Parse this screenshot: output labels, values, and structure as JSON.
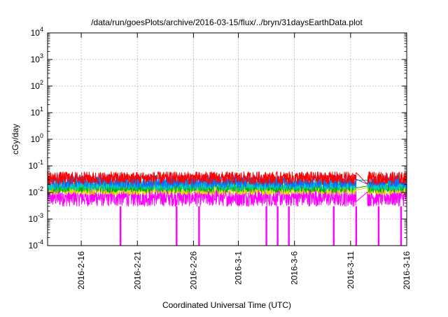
{
  "chart_data": {
    "type": "line",
    "title": "/data/run/goesPlots/archive/2016-03-15/flux/../bryn/31daysEarthData.plot",
    "xlabel": "Coordinated Universal Time (UTC)",
    "ylabel": "cGy/day",
    "yscale": "log",
    "ylim": [
      0.0001,
      10000
    ],
    "xlim": [
      "2016-02-13",
      "2016-03-16"
    ],
    "grid": true,
    "legend": "none",
    "x_ticks": [
      "2016-2-16",
      "2016-2-21",
      "2016-2-26",
      "2016-3-1",
      "2016-3-6",
      "2016-3-11",
      "2016-3-16"
    ],
    "y_ticks": [
      {
        "value": 0.0001,
        "base": "10",
        "exp": "-4"
      },
      {
        "value": 0.001,
        "base": "10",
        "exp": "-3"
      },
      {
        "value": 0.01,
        "base": "10",
        "exp": "-2"
      },
      {
        "value": 0.1,
        "base": "10",
        "exp": "-1"
      },
      {
        "value": 1,
        "base": "10",
        "exp": "0"
      },
      {
        "value": 10,
        "base": "10",
        "exp": "1"
      },
      {
        "value": 100,
        "base": "10",
        "exp": "2"
      },
      {
        "value": 1000,
        "base": "10",
        "exp": "3"
      },
      {
        "value": 10000,
        "base": "10",
        "exp": "4"
      }
    ],
    "data_gap": [
      "2016-03-11T12:00",
      "2016-03-12T12:00"
    ],
    "series": [
      {
        "color": "#ff0000",
        "low": 0.02,
        "high": 0.06
      },
      {
        "color": "#0070ff",
        "low": 0.015,
        "high": 0.045
      },
      {
        "color": "#00c8c8",
        "low": 0.012,
        "high": 0.03
      },
      {
        "color": "#00b000",
        "low": 0.01,
        "high": 0.025
      },
      {
        "color": "#e0e000",
        "low": 0.008,
        "high": 0.02
      },
      {
        "color": "#ff00ff",
        "low": 0.003,
        "high": 0.015
      }
    ],
    "magenta_dropouts": [
      "2016-02-19",
      "2016-02-24",
      "2016-02-26",
      "2016-03-03",
      "2016-03-04",
      "2016-03-05",
      "2016-03-09",
      "2016-03-11",
      "2016-03-13",
      "2016-03-15"
    ]
  }
}
